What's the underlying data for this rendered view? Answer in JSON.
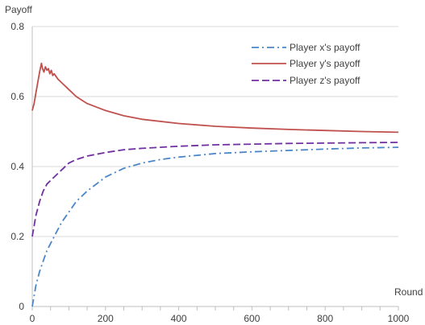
{
  "chart_data": {
    "type": "line",
    "title": "",
    "ylabel": "Payoff",
    "xlabel": "Round",
    "xlim": [
      0,
      1000
    ],
    "ylim": [
      0,
      0.8
    ],
    "xticks": [
      0,
      200,
      400,
      600,
      800,
      1000
    ],
    "yticks": [
      0,
      0.2,
      0.4,
      0.6,
      0.8
    ],
    "ytick_labels": [
      "0",
      "0.2",
      "0.4",
      "0.6",
      "0.8"
    ],
    "grid": "horizontal",
    "legend_position": "top-right",
    "series": [
      {
        "name": "Player x's payoff",
        "color": "#4a86c8",
        "dash": "dashdot",
        "x": [
          0,
          5,
          10,
          20,
          30,
          40,
          50,
          60,
          80,
          100,
          120,
          150,
          200,
          250,
          300,
          350,
          400,
          450,
          500,
          600,
          700,
          800,
          900,
          1000
        ],
        "y": [
          0.0,
          0.03,
          0.06,
          0.1,
          0.13,
          0.16,
          0.18,
          0.2,
          0.24,
          0.27,
          0.3,
          0.33,
          0.37,
          0.395,
          0.41,
          0.42,
          0.427,
          0.432,
          0.437,
          0.442,
          0.446,
          0.45,
          0.453,
          0.455
        ]
      },
      {
        "name": "Player y's payoff",
        "color": "#c0504d",
        "dash": "solid",
        "x": [
          0,
          5,
          10,
          15,
          20,
          25,
          28,
          32,
          36,
          40,
          44,
          48,
          52,
          56,
          60,
          70,
          80,
          100,
          120,
          150,
          200,
          250,
          300,
          400,
          500,
          600,
          700,
          800,
          900,
          1000
        ],
        "y": [
          0.56,
          0.58,
          0.61,
          0.64,
          0.67,
          0.695,
          0.68,
          0.67,
          0.685,
          0.675,
          0.68,
          0.665,
          0.675,
          0.66,
          0.665,
          0.65,
          0.64,
          0.62,
          0.6,
          0.58,
          0.56,
          0.545,
          0.535,
          0.523,
          0.515,
          0.51,
          0.506,
          0.503,
          0.5,
          0.498
        ]
      },
      {
        "name": "Player z's payoff",
        "color": "#7030a0",
        "dash": "dashed",
        "x": [
          0,
          5,
          10,
          20,
          30,
          40,
          50,
          60,
          80,
          100,
          120,
          150,
          200,
          250,
          300,
          400,
          500,
          600,
          700,
          800,
          900,
          1000
        ],
        "y": [
          0.2,
          0.23,
          0.26,
          0.3,
          0.33,
          0.35,
          0.36,
          0.37,
          0.39,
          0.41,
          0.42,
          0.43,
          0.44,
          0.448,
          0.452,
          0.458,
          0.462,
          0.464,
          0.466,
          0.467,
          0.468,
          0.469
        ]
      }
    ]
  }
}
